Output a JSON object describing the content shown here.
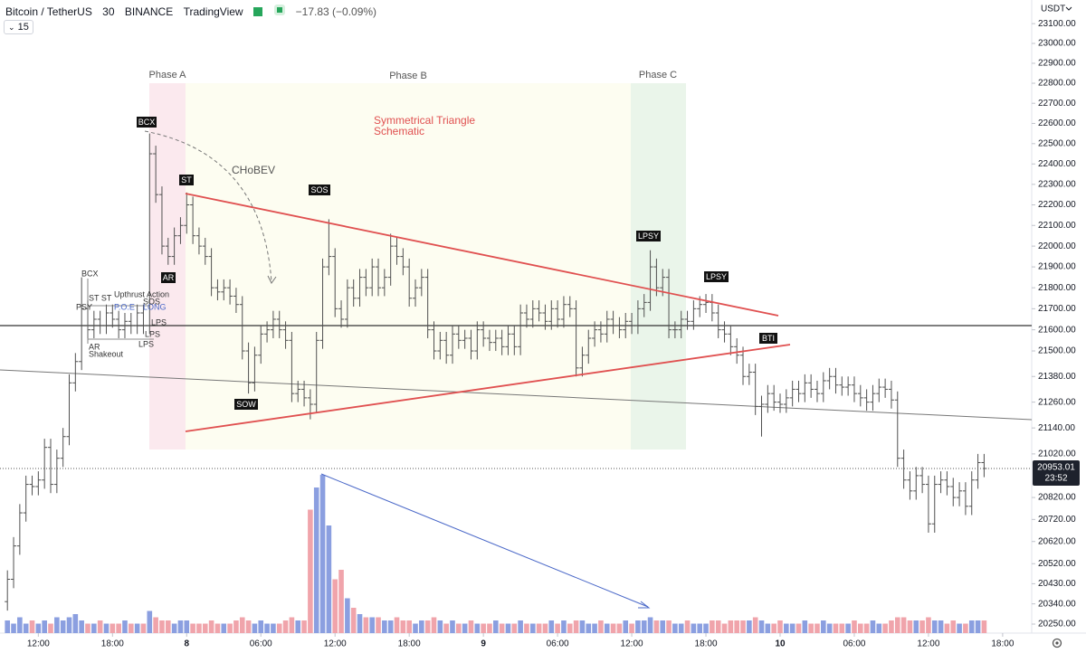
{
  "header": {
    "symbol": "Bitcoin / TetherUS",
    "interval": "30",
    "exchange": "BINANCE",
    "platform": "TradingView",
    "change": "−17.83 (−0.09%)",
    "interval_button": "15",
    "currency": "USDT"
  },
  "chart_data": {
    "type": "ohlc",
    "log_scale": true,
    "bar_color": "#505050",
    "up_color": "#8b9fe0",
    "down_color": "#f0a4ab",
    "ylim": [
      20210,
      23220
    ],
    "xlim": [
      -1.2,
      165.7
    ],
    "yticks": [
      {
        "value": 23100,
        "label": "23100.00"
      },
      {
        "value": 23000,
        "label": "23000.00"
      },
      {
        "value": 22900,
        "label": "22900.00"
      },
      {
        "value": 22800,
        "label": "22800.00"
      },
      {
        "value": 22700,
        "label": "22700.00"
      },
      {
        "value": 22600,
        "label": "22600.00"
      },
      {
        "value": 22500,
        "label": "22500.00"
      },
      {
        "value": 22400,
        "label": "22400.00"
      },
      {
        "value": 22300,
        "label": "22300.00"
      },
      {
        "value": 22200,
        "label": "22200.00"
      },
      {
        "value": 22100,
        "label": "22100.00"
      },
      {
        "value": 22000,
        "label": "22000.00"
      },
      {
        "value": 21900,
        "label": "21900.00"
      },
      {
        "value": 21800,
        "label": "21800.00"
      },
      {
        "value": 21700,
        "label": "21700.00"
      },
      {
        "value": 21600,
        "label": "21600.00"
      },
      {
        "value": 21500,
        "label": "21500.00"
      },
      {
        "value": 21380,
        "label": "21380.00"
      },
      {
        "value": 21260,
        "label": "21260.00"
      },
      {
        "value": 21140,
        "label": "21140.00"
      },
      {
        "value": 21020,
        "label": "21020.00"
      },
      {
        "value": 20820,
        "label": "20820.00"
      },
      {
        "value": 20720,
        "label": "20720.00"
      },
      {
        "value": 20620,
        "label": "20620.00"
      },
      {
        "value": 20520,
        "label": "20520.00"
      },
      {
        "value": 20430,
        "label": "20430.00"
      },
      {
        "value": 20340,
        "label": "20340.00"
      },
      {
        "value": 20250,
        "label": "20250.00"
      }
    ],
    "xticks": [
      {
        "value": 5,
        "label": "12:00"
      },
      {
        "value": 17,
        "label": "18:00"
      },
      {
        "value": 29,
        "label": "8"
      },
      {
        "value": 41,
        "label": "06:00"
      },
      {
        "value": 53,
        "label": "12:00"
      },
      {
        "value": 65,
        "label": "18:00"
      },
      {
        "value": 77,
        "label": "9"
      },
      {
        "value": 89,
        "label": "06:00"
      },
      {
        "value": 101,
        "label": "12:00"
      },
      {
        "value": 113,
        "label": "18:00"
      },
      {
        "value": 125,
        "label": "10"
      },
      {
        "value": 137,
        "label": "06:00"
      },
      {
        "value": 149,
        "label": "12:00"
      },
      {
        "value": 161,
        "label": "18:00"
      }
    ],
    "last_price": 20953.01,
    "countdown": "23:52",
    "open": [
      20350,
      20450,
      20600,
      20750,
      20880,
      20870,
      20900,
      21050,
      20880,
      21000,
      21100,
      21350,
      21450,
      21700,
      21600,
      21650,
      21620,
      21680,
      21650,
      21600,
      21640,
      21620,
      21680,
      21620,
      22450,
      22250,
      22000,
      21950,
      22050,
      22100,
      22200,
      22050,
      22000,
      21950,
      21800,
      21780,
      21800,
      21760,
      21720,
      21500,
      21350,
      21480,
      21580,
      21600,
      21650,
      21600,
      21550,
      21300,
      21320,
      21280,
      21250,
      21550,
      21900,
      21950,
      21700,
      21650,
      21800,
      21750,
      21850,
      21800,
      21900,
      21800,
      21850,
      22000,
      21950,
      21900,
      21750,
      21800,
      21850,
      21600,
      21500,
      21550,
      21480,
      21580,
      21550,
      21560,
      21500,
      21600,
      21560,
      21540,
      21560,
      21520,
      21580,
      21520,
      21680,
      21650,
      21700,
      21680,
      21640,
      21700,
      21650,
      21720,
      21700,
      21420,
      21480,
      21560,
      21600,
      21580,
      21650,
      21620,
      21600,
      21640,
      21620,
      21700,
      21730,
      21900,
      21800,
      21850,
      21600,
      21600,
      21650,
      21640,
      21700,
      21720,
      21730,
      21680,
      21600,
      21580,
      21520,
      21480,
      21380,
      21400,
      21240,
      21250,
      21300,
      21260,
      21250,
      21280,
      21320,
      21300,
      21350,
      21320,
      21300,
      21360,
      21380,
      21340,
      21330,
      21340,
      21300,
      21280,
      21260,
      21300,
      21330,
      21320,
      21270,
      21000,
      20900,
      20850,
      20920,
      20880,
      20700,
      20880,
      20900,
      20870,
      20820,
      20850,
      20780,
      20900,
      20980
    ],
    "high": [
      20490,
      20640,
      20790,
      20920,
      20920,
      20940,
      21090,
      21090,
      21040,
      21140,
      21390,
      21490,
      21850,
      21740,
      21690,
      21690,
      21720,
      21720,
      21690,
      21680,
      21680,
      21720,
      21720,
      22550,
      22490,
      22290,
      22040,
      22090,
      22140,
      22260,
      22240,
      22090,
      22040,
      21990,
      21840,
      21840,
      21840,
      21800,
      21760,
      21540,
      21520,
      21620,
      21640,
      21690,
      21690,
      21640,
      21590,
      21360,
      21360,
      21320,
      21590,
      21940,
      22130,
      21990,
      21740,
      21840,
      21840,
      21890,
      21890,
      21940,
      21940,
      21890,
      22060,
      22040,
      21990,
      21940,
      21840,
      21890,
      21890,
      21640,
      21590,
      21590,
      21620,
      21620,
      21600,
      21600,
      21640,
      21640,
      21600,
      21600,
      21600,
      21620,
      21620,
      21720,
      21720,
      21740,
      21740,
      21720,
      21740,
      21740,
      21760,
      21760,
      21740,
      21520,
      21600,
      21640,
      21640,
      21690,
      21690,
      21660,
      21680,
      21680,
      21740,
      21770,
      21980,
      21940,
      21890,
      21890,
      21640,
      21690,
      21690,
      21740,
      21760,
      21770,
      21770,
      21720,
      21640,
      21620,
      21560,
      21520,
      21440,
      21440,
      21290,
      21340,
      21340,
      21300,
      21320,
      21360,
      21360,
      21390,
      21390,
      21360,
      21400,
      21420,
      21420,
      21380,
      21380,
      21380,
      21340,
      21320,
      21340,
      21370,
      21370,
      21360,
      21310,
      21040,
      20940,
      20960,
      20960,
      20920,
      20920,
      20940,
      20940,
      20910,
      20890,
      20890,
      20940,
      21020,
      21020
    ],
    "low": [
      20310,
      20410,
      20560,
      20710,
      20830,
      20830,
      20860,
      20840,
      20840,
      20960,
      21060,
      21310,
      21410,
      21560,
      21560,
      21580,
      21580,
      21610,
      21560,
      21560,
      21580,
      21580,
      21580,
      21580,
      22210,
      21960,
      21910,
      21910,
      22010,
      22060,
      22010,
      21960,
      21910,
      21760,
      21740,
      21740,
      21720,
      21680,
      21460,
      21300,
      21310,
      21440,
      21540,
      21560,
      21560,
      21510,
      21260,
      21260,
      21240,
      21180,
      21210,
      21510,
      21860,
      21660,
      21610,
      21610,
      21710,
      21710,
      21760,
      21760,
      21760,
      21760,
      21810,
      21910,
      21860,
      21710,
      21710,
      21760,
      21560,
      21460,
      21460,
      21440,
      21440,
      21510,
      21510,
      21460,
      21460,
      21520,
      21500,
      21500,
      21480,
      21480,
      21480,
      21480,
      21610,
      21610,
      21640,
      21600,
      21600,
      21610,
      21610,
      21660,
      21380,
      21380,
      21440,
      21520,
      21540,
      21540,
      21580,
      21560,
      21560,
      21580,
      21580,
      21660,
      21690,
      21760,
      21760,
      21560,
      21560,
      21560,
      21600,
      21600,
      21660,
      21680,
      21640,
      21560,
      21540,
      21480,
      21440,
      21340,
      21340,
      21200,
      21100,
      21210,
      21220,
      21210,
      21210,
      21240,
      21260,
      21260,
      21280,
      21260,
      21260,
      21320,
      21300,
      21290,
      21290,
      21260,
      21240,
      21220,
      21220,
      21260,
      21280,
      21230,
      20960,
      20860,
      20810,
      20810,
      20840,
      20660,
      20660,
      20840,
      20830,
      20780,
      20780,
      20740,
      20740,
      20860,
      20913
    ],
    "close": [
      20450,
      20600,
      20750,
      20880,
      20870,
      20900,
      21050,
      20880,
      21000,
      21100,
      21350,
      21450,
      21700,
      21600,
      21650,
      21620,
      21680,
      21650,
      21600,
      21640,
      21620,
      21680,
      21620,
      22450,
      22250,
      22000,
      21950,
      22050,
      22100,
      22200,
      22050,
      22000,
      21950,
      21800,
      21780,
      21800,
      21760,
      21720,
      21500,
      21350,
      21480,
      21580,
      21600,
      21650,
      21600,
      21550,
      21300,
      21320,
      21280,
      21250,
      21550,
      21900,
      21950,
      21700,
      21650,
      21800,
      21750,
      21850,
      21800,
      21900,
      21800,
      21850,
      22000,
      21950,
      21900,
      21750,
      21800,
      21850,
      21600,
      21500,
      21550,
      21480,
      21580,
      21550,
      21560,
      21500,
      21600,
      21560,
      21540,
      21560,
      21520,
      21580,
      21520,
      21680,
      21650,
      21700,
      21680,
      21640,
      21700,
      21650,
      21720,
      21700,
      21420,
      21480,
      21560,
      21600,
      21580,
      21650,
      21620,
      21600,
      21640,
      21620,
      21700,
      21730,
      21900,
      21800,
      21850,
      21600,
      21600,
      21650,
      21640,
      21700,
      21720,
      21730,
      21680,
      21600,
      21580,
      21520,
      21480,
      21380,
      21400,
      21240,
      21250,
      21300,
      21260,
      21250,
      21280,
      21320,
      21300,
      21350,
      21320,
      21300,
      21360,
      21380,
      21340,
      21330,
      21340,
      21300,
      21280,
      21260,
      21300,
      21330,
      21320,
      21270,
      21000,
      20900,
      20850,
      20920,
      20880,
      20700,
      20880,
      20900,
      20870,
      20820,
      20850,
      20780,
      20900,
      20980,
      20953.01
    ],
    "volume": [
      4,
      3,
      5,
      3,
      4,
      3,
      4,
      3,
      5,
      4,
      5,
      6,
      4,
      3,
      3,
      4,
      3,
      3,
      3,
      4,
      3,
      3,
      3,
      7,
      5,
      4,
      4,
      3,
      4,
      4,
      3,
      3,
      3,
      4,
      3,
      3,
      3,
      4,
      5,
      4,
      3,
      4,
      3,
      3,
      3,
      4,
      5,
      4,
      4,
      39,
      46,
      50,
      34,
      17,
      20,
      11,
      8,
      6,
      5,
      5,
      5,
      4,
      4,
      5,
      4,
      4,
      3,
      4,
      4,
      5,
      4,
      3,
      4,
      3,
      3,
      4,
      3,
      3,
      3,
      4,
      3,
      3,
      3,
      4,
      3,
      3,
      3,
      3,
      4,
      3,
      4,
      3,
      4,
      4,
      3,
      3,
      4,
      3,
      3,
      3,
      4,
      3,
      4,
      4,
      5,
      4,
      4,
      4,
      3,
      3,
      4,
      3,
      3,
      3,
      4,
      4,
      3,
      4,
      4,
      4,
      4,
      5,
      4,
      3,
      3,
      4,
      3,
      3,
      3,
      4,
      3,
      3,
      4,
      3,
      3,
      3,
      3,
      4,
      3,
      3,
      4,
      3,
      3,
      4,
      5,
      5,
      4,
      4,
      4,
      5,
      4,
      4,
      3,
      4,
      3,
      3,
      4,
      4,
      4
    ]
  },
  "annotations": {
    "phases": [
      "Phase A",
      "Phase B",
      "Phase C"
    ],
    "schematic": [
      "Symmetrical Triangle",
      "Schematic"
    ],
    "choch": "CHoBEV",
    "tags": [
      "BCX",
      "ST",
      "AR",
      "SOS",
      "SOW",
      "LPSY",
      "LPSY",
      "BTI"
    ],
    "small": [
      "BCX",
      "ST ST",
      "Upthrust Action",
      "PSY",
      "P.O.E",
      "LONG",
      "SOS",
      "LPS",
      "LPS",
      "AR",
      "Shakeout",
      "LPS"
    ]
  }
}
